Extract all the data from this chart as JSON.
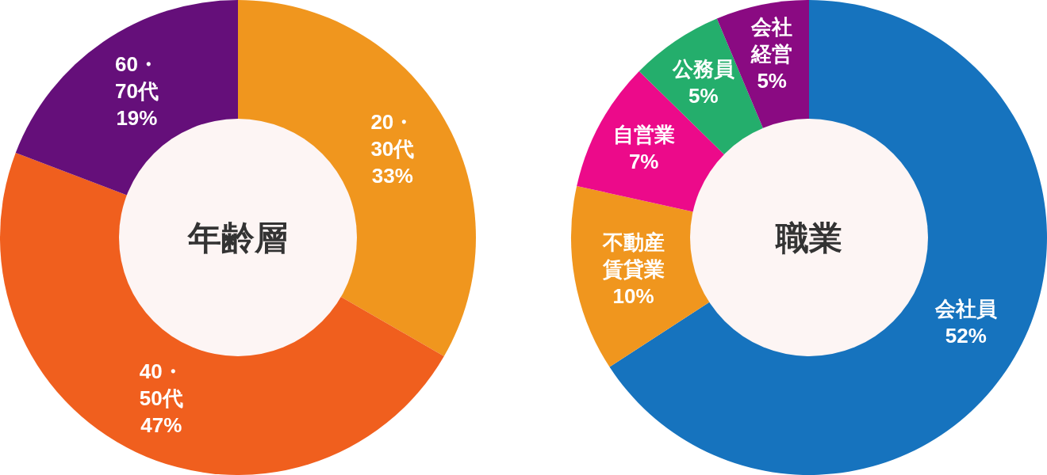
{
  "chart_data": [
    {
      "type": "donut",
      "title": "年齢層",
      "categories": [
        "20・30代",
        "40・50代",
        "60・70代"
      ],
      "values": [
        33,
        47,
        19
      ],
      "value_labels": [
        "33%",
        "47%",
        "19%"
      ],
      "colors": [
        "#f0961e",
        "#f05f1e",
        "#650f7a"
      ]
    },
    {
      "type": "donut",
      "title": "職業",
      "categories": [
        "会社員",
        "不動産賃貸業",
        "自営業",
        "公務員",
        "会社経営"
      ],
      "values": [
        52,
        10,
        7,
        5,
        5
      ],
      "value_labels": [
        "52%",
        "10%",
        "7%",
        "5%",
        "5%"
      ],
      "colors": [
        "#1673be",
        "#f0961e",
        "#ec0a8a",
        "#24ae6c",
        "#8a0a82"
      ]
    }
  ]
}
